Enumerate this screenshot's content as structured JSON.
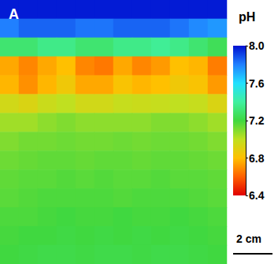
{
  "chart_data": {
    "type": "heatmap",
    "title": "A",
    "colors": [
      "#e00000",
      "#ff6000",
      "#ffc000",
      "#c0e020",
      "#40d840",
      "#40f0a0",
      "#20e0ff",
      "#2080ff",
      "#0010d0"
    ],
    "colorbar": {
      "label": "pH",
      "range": [
        6.4,
        8.0
      ],
      "ticks": [
        {
          "value": 8.0,
          "label": "8.0"
        },
        {
          "value": 7.6,
          "label": "7.6"
        },
        {
          "value": 7.2,
          "label": "7.2"
        },
        {
          "value": 6.8,
          "label": "6.8"
        },
        {
          "value": 6.4,
          "label": "6.4"
        }
      ]
    },
    "scale_bar": "2 cm",
    "cells": [
      [
        7.98,
        7.98,
        7.98,
        7.98,
        7.98,
        7.98,
        7.98,
        7.98,
        7.98,
        7.98,
        7.98,
        7.98
      ],
      [
        7.8,
        7.85,
        7.85,
        7.85,
        7.82,
        7.82,
        7.85,
        7.85,
        7.85,
        7.82,
        7.78,
        7.75
      ],
      [
        7.3,
        7.3,
        7.35,
        7.35,
        7.3,
        7.3,
        7.35,
        7.35,
        7.38,
        7.35,
        7.3,
        7.25
      ],
      [
        6.75,
        6.68,
        6.75,
        6.8,
        6.68,
        6.65,
        6.75,
        6.68,
        6.72,
        6.8,
        6.78,
        6.66
      ],
      [
        6.78,
        6.7,
        6.78,
        6.85,
        6.75,
        6.75,
        6.82,
        6.78,
        6.8,
        6.85,
        6.82,
        6.72
      ],
      [
        6.95,
        6.92,
        6.97,
        7.0,
        6.95,
        6.95,
        6.98,
        6.97,
        6.98,
        7.0,
        6.98,
        6.92
      ],
      [
        7.05,
        7.05,
        7.08,
        7.1,
        7.08,
        7.08,
        7.08,
        7.08,
        7.1,
        7.1,
        7.08,
        7.05
      ],
      [
        7.1,
        7.12,
        7.12,
        7.13,
        7.12,
        7.12,
        7.13,
        7.12,
        7.13,
        7.13,
        7.12,
        7.1
      ],
      [
        7.13,
        7.14,
        7.15,
        7.15,
        7.14,
        7.15,
        7.15,
        7.14,
        7.15,
        7.15,
        7.14,
        7.13
      ],
      [
        7.15,
        7.16,
        7.16,
        7.17,
        7.16,
        7.17,
        7.16,
        7.16,
        7.17,
        7.16,
        7.16,
        7.15
      ],
      [
        7.16,
        7.17,
        7.18,
        7.18,
        7.18,
        7.18,
        7.17,
        7.18,
        7.18,
        7.18,
        7.17,
        7.16
      ],
      [
        7.18,
        7.18,
        7.19,
        7.2,
        7.19,
        7.19,
        7.2,
        7.19,
        7.19,
        7.2,
        7.19,
        7.18
      ],
      [
        7.19,
        7.2,
        7.2,
        7.21,
        7.2,
        7.21,
        7.2,
        7.21,
        7.2,
        7.21,
        7.2,
        7.19
      ],
      [
        7.2,
        7.21,
        7.22,
        7.22,
        7.21,
        7.22,
        7.22,
        7.21,
        7.22,
        7.22,
        7.21,
        7.2
      ]
    ]
  }
}
